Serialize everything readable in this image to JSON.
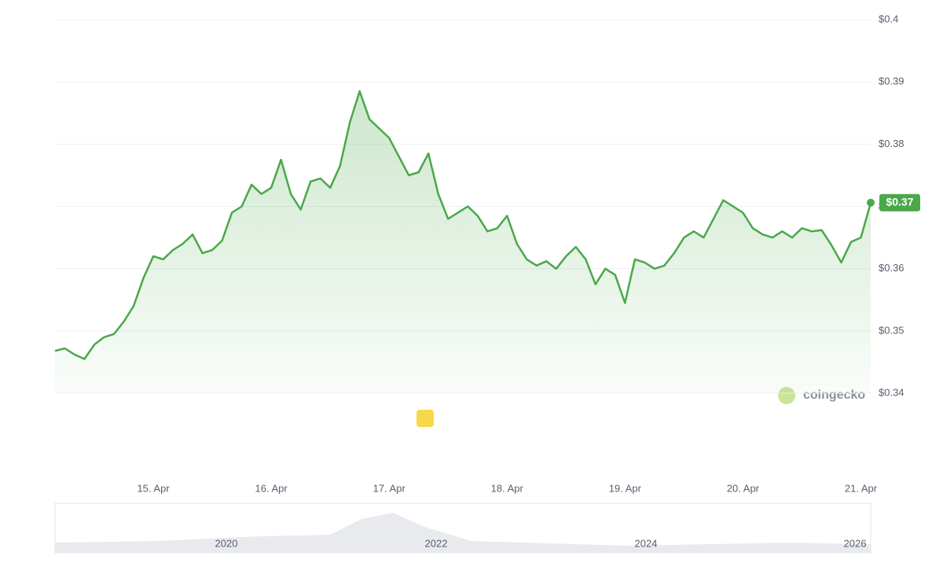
{
  "chart_data": {
    "type": "line",
    "categories": [
      null,
      null,
      null,
      null,
      null,
      null,
      null,
      null,
      null,
      null,
      "15. Apr",
      null,
      null,
      null,
      null,
      null,
      null,
      null,
      null,
      null,
      null,
      null,
      "16. Apr",
      null,
      null,
      null,
      null,
      null,
      null,
      null,
      null,
      null,
      null,
      null,
      "17. Apr",
      null,
      null,
      null,
      null,
      null,
      null,
      null,
      null,
      null,
      null,
      null,
      "18. Apr",
      null,
      null,
      null,
      null,
      null,
      null,
      null,
      null,
      null,
      null,
      null,
      "19. Apr",
      null,
      null,
      null,
      null,
      null,
      null,
      null,
      null,
      null,
      null,
      null,
      "20. Apr",
      null,
      null,
      null,
      null,
      null,
      null,
      null,
      null,
      null,
      null,
      null,
      "21. Apr",
      null
    ],
    "series": [
      {
        "color": "#4aa84a",
        "values": [
          0.3468,
          0.3472,
          0.3462,
          0.3455,
          0.3478,
          0.349,
          0.3495,
          0.3515,
          0.354,
          0.3585,
          0.362,
          0.3615,
          0.363,
          0.364,
          0.3655,
          0.3625,
          0.363,
          0.3645,
          0.369,
          0.37,
          0.3735,
          0.372,
          0.373,
          0.3775,
          0.372,
          0.3695,
          0.374,
          0.3745,
          0.373,
          0.3765,
          0.3835,
          0.3885,
          0.384,
          0.3825,
          0.381,
          0.378,
          0.375,
          0.3755,
          0.3785,
          0.372,
          0.368,
          0.369,
          0.37,
          0.3685,
          0.366,
          0.3665,
          0.3685,
          0.364,
          0.3615,
          0.3605,
          0.3612,
          0.36,
          0.362,
          0.3635,
          0.3615,
          0.3575,
          0.36,
          0.359,
          0.3545,
          0.3615,
          0.361,
          0.36,
          0.3605,
          0.3625,
          0.365,
          0.366,
          0.365,
          0.368,
          0.371,
          0.37,
          0.369,
          0.3665,
          0.3655,
          0.365,
          0.366,
          0.365,
          0.3665,
          0.366,
          0.3662,
          0.3638,
          0.361,
          0.3643,
          0.365,
          0.3706
        ],
        "value_labels": [
          null,
          null,
          null,
          null,
          null,
          null,
          null,
          null,
          null,
          null,
          null,
          null,
          null,
          null,
          null,
          null,
          null,
          null,
          null,
          null,
          null,
          null,
          null,
          null,
          null,
          null,
          null,
          null,
          null,
          null,
          null,
          null,
          null,
          null,
          null,
          null,
          null,
          null,
          null,
          null,
          null,
          null,
          null,
          null,
          null,
          null,
          null,
          null,
          null,
          null,
          null,
          null,
          null,
          null,
          null,
          null,
          null,
          null,
          null,
          null,
          null,
          null,
          null,
          null,
          null,
          null,
          null,
          null,
          null,
          null,
          null,
          null,
          null,
          null,
          null,
          null,
          null,
          null,
          null,
          null,
          null,
          null,
          null,
          "$0.37"
        ]
      }
    ],
    "ylim": [
      0.34,
      0.4
    ],
    "yticks": [
      {
        "value": 0.34,
        "label": "$0.34"
      },
      {
        "value": 0.35,
        "label": "$0.35"
      },
      {
        "value": 0.36,
        "label": "$0.36"
      },
      {
        "value": 0.37,
        "label": "$0.37"
      },
      {
        "value": 0.38,
        "label": "$0.38"
      },
      {
        "value": 0.39,
        "label": "$0.39"
      },
      {
        "value": 0.4,
        "label": "$0.4"
      }
    ],
    "grid": true,
    "watermark": "coingecko"
  },
  "navigator": {
    "labels": [
      "2020",
      "2022",
      "2024",
      "2026"
    ]
  }
}
